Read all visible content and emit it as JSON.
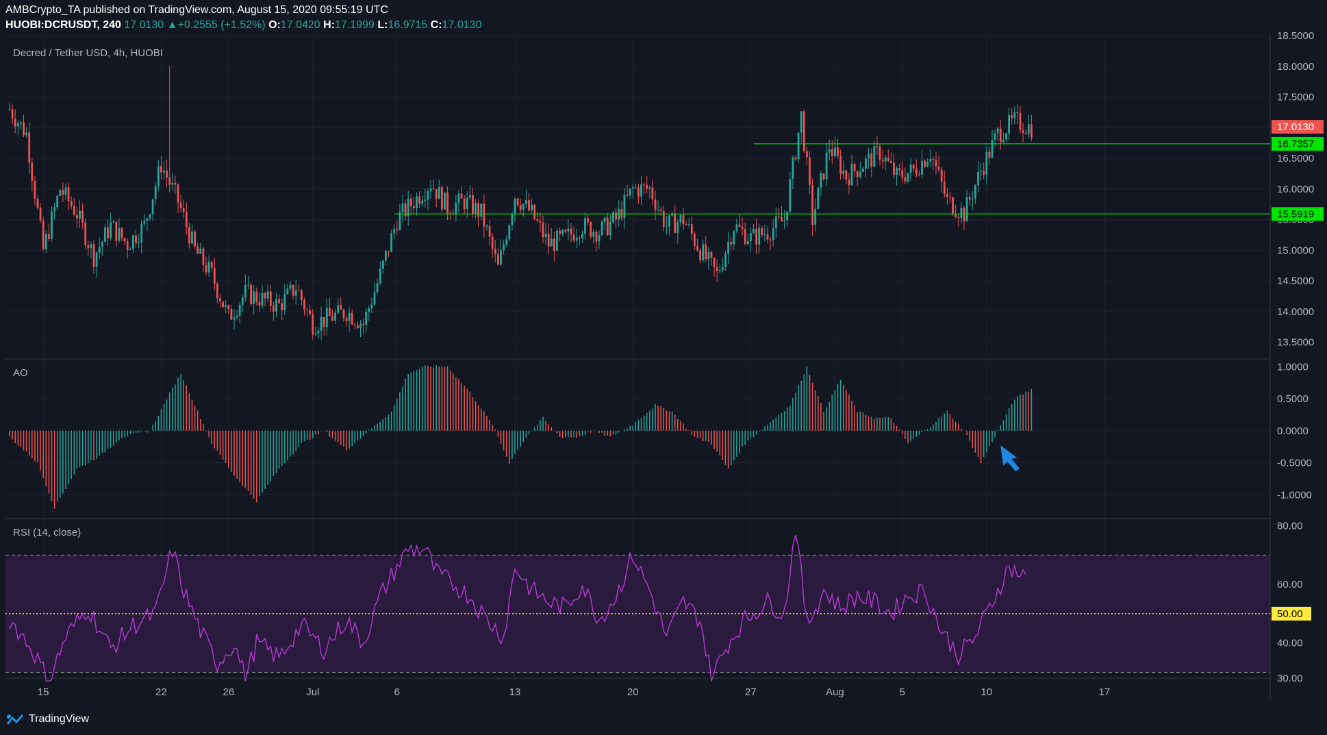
{
  "header": {
    "publisher": "AMBCrypto_TA",
    "published_text": "published on TradingView.com, August 15, 2020 09:55:19 UTC",
    "symbol": "HUOBI:DCRUSDT, 240",
    "last": "17.0130",
    "change": "+0.2555 (+1.52%)",
    "o_label": "O:",
    "o": "17.0420",
    "h_label": "H:",
    "h": "17.1999",
    "l_label": "L:",
    "l": "16.9715",
    "c_label": "C:",
    "c": "17.0130"
  },
  "footer": {
    "brand": "TradingView",
    "logo_icon": "tradingview-logo-icon"
  },
  "colors": {
    "bg": "#131722",
    "up": "#26a69a",
    "down": "#ef5350",
    "grid": "#1e222d",
    "level": "#00e600",
    "rsi": "#b53bd3",
    "arrow": "#1e88e5"
  },
  "chart_data": [
    {
      "type": "candlestick",
      "title": "Decred / Tether USD, 4h, HUOBI",
      "ylim": [
        13.25,
        18.5
      ],
      "yticks": [
        "18.5000",
        "18.0000",
        "17.5000",
        "17.0000",
        "16.5000",
        "16.0000",
        "15.5000",
        "15.0000",
        "14.5000",
        "14.0000",
        "13.5000"
      ],
      "price_range": [
        13.6,
        18.0
      ],
      "waypoints": [
        [
          0,
          17.3
        ],
        [
          6,
          16.9
        ],
        [
          12,
          15.0
        ],
        [
          18,
          16.0
        ],
        [
          24,
          15.6
        ],
        [
          30,
          14.9
        ],
        [
          36,
          15.4
        ],
        [
          42,
          15.1
        ],
        [
          48,
          15.4
        ],
        [
          54,
          16.4
        ],
        [
          60,
          15.8
        ],
        [
          66,
          15.0
        ],
        [
          72,
          14.6
        ],
        [
          78,
          13.9
        ],
        [
          84,
          14.3
        ],
        [
          90,
          14.2
        ],
        [
          96,
          14.1
        ],
        [
          102,
          14.4
        ],
        [
          108,
          13.8
        ],
        [
          114,
          13.9
        ],
        [
          120,
          14.0
        ],
        [
          126,
          13.8
        ],
        [
          132,
          14.6
        ],
        [
          138,
          15.5
        ],
        [
          144,
          15.8
        ],
        [
          150,
          16.1
        ],
        [
          156,
          15.7
        ],
        [
          162,
          15.8
        ],
        [
          168,
          15.6
        ],
        [
          174,
          14.7
        ],
        [
          180,
          15.9
        ],
        [
          186,
          15.6
        ],
        [
          192,
          15.1
        ],
        [
          198,
          15.2
        ],
        [
          204,
          15.4
        ],
        [
          210,
          15.3
        ],
        [
          216,
          15.5
        ],
        [
          222,
          16.0
        ],
        [
          228,
          16.0
        ],
        [
          234,
          15.4
        ],
        [
          240,
          15.5
        ],
        [
          246,
          15.0
        ],
        [
          252,
          14.6
        ],
        [
          258,
          15.4
        ],
        [
          264,
          15.2
        ],
        [
          270,
          15.3
        ],
        [
          276,
          15.5
        ],
        [
          282,
          17.2
        ],
        [
          286,
          15.5
        ],
        [
          292,
          16.7
        ],
        [
          298,
          16.2
        ],
        [
          304,
          16.4
        ],
        [
          310,
          16.6
        ],
        [
          316,
          16.2
        ],
        [
          322,
          16.3
        ],
        [
          328,
          16.6
        ],
        [
          334,
          15.8
        ],
        [
          340,
          15.6
        ],
        [
          346,
          16.3
        ],
        [
          352,
          16.9
        ],
        [
          358,
          17.1
        ],
        [
          364,
          17.0
        ]
      ],
      "candle_count": 365,
      "levels": [
        {
          "value": 16.7357,
          "label": "16.7357",
          "start_index": 265
        },
        {
          "value": 15.5919,
          "label": "15.5919",
          "start_index": 137
        }
      ],
      "last_price": {
        "value": 17.013,
        "label": "17.0130"
      }
    },
    {
      "type": "histogram",
      "title": "AO",
      "ylim": [
        -1.35,
        1.1
      ],
      "yticks": [
        "1.0000",
        "0.5000",
        "0.0000",
        "-0.5000",
        "-1.0000"
      ],
      "waypoints": [
        [
          0,
          -0.1
        ],
        [
          10,
          -0.5
        ],
        [
          16,
          -1.2
        ],
        [
          24,
          -0.6
        ],
        [
          32,
          -0.4
        ],
        [
          40,
          -0.1
        ],
        [
          50,
          0.0
        ],
        [
          56,
          0.5
        ],
        [
          61,
          0.9
        ],
        [
          66,
          0.4
        ],
        [
          72,
          -0.2
        ],
        [
          80,
          -0.7
        ],
        [
          88,
          -1.1
        ],
        [
          96,
          -0.6
        ],
        [
          104,
          -0.2
        ],
        [
          112,
          0.0
        ],
        [
          120,
          -0.3
        ],
        [
          128,
          0.0
        ],
        [
          136,
          0.3
        ],
        [
          142,
          0.9
        ],
        [
          148,
          1.0
        ],
        [
          156,
          1.0
        ],
        [
          164,
          0.6
        ],
        [
          172,
          0.1
        ],
        [
          178,
          -0.5
        ],
        [
          184,
          -0.1
        ],
        [
          190,
          0.2
        ],
        [
          196,
          -0.1
        ],
        [
          202,
          -0.1
        ],
        [
          208,
          0.0
        ],
        [
          214,
          -0.1
        ],
        [
          222,
          0.1
        ],
        [
          230,
          0.4
        ],
        [
          236,
          0.3
        ],
        [
          244,
          -0.1
        ],
        [
          250,
          -0.2
        ],
        [
          256,
          -0.6
        ],
        [
          262,
          -0.2
        ],
        [
          270,
          0.1
        ],
        [
          278,
          0.4
        ],
        [
          284,
          1.0
        ],
        [
          290,
          0.3
        ],
        [
          296,
          0.8
        ],
        [
          302,
          0.3
        ],
        [
          308,
          0.2
        ],
        [
          314,
          0.2
        ],
        [
          320,
          -0.2
        ],
        [
          326,
          0.0
        ],
        [
          334,
          0.3
        ],
        [
          340,
          0.0
        ],
        [
          346,
          -0.5
        ],
        [
          352,
          0.0
        ],
        [
          358,
          0.5
        ],
        [
          364,
          0.65
        ]
      ],
      "arrow_icon": "blue-arrow-annotation"
    },
    {
      "type": "line",
      "title": "RSI (14, close)",
      "ylim": [
        28,
        82
      ],
      "yticks": [
        "80.00",
        "60.00",
        "40.00"
      ],
      "band": [
        30,
        70
      ],
      "midline": {
        "value": 50,
        "label": "50.00"
      },
      "waypoints": [
        [
          0,
          48
        ],
        [
          8,
          38
        ],
        [
          14,
          27
        ],
        [
          20,
          42
        ],
        [
          28,
          52
        ],
        [
          36,
          38
        ],
        [
          44,
          46
        ],
        [
          52,
          50
        ],
        [
          58,
          72
        ],
        [
          62,
          58
        ],
        [
          68,
          44
        ],
        [
          74,
          33
        ],
        [
          80,
          40
        ],
        [
          84,
          28
        ],
        [
          88,
          40
        ],
        [
          96,
          35
        ],
        [
          104,
          46
        ],
        [
          112,
          38
        ],
        [
          120,
          48
        ],
        [
          126,
          40
        ],
        [
          132,
          56
        ],
        [
          138,
          66
        ],
        [
          142,
          72
        ],
        [
          148,
          72
        ],
        [
          152,
          64
        ],
        [
          158,
          60
        ],
        [
          164,
          56
        ],
        [
          170,
          48
        ],
        [
          176,
          42
        ],
        [
          180,
          66
        ],
        [
          186,
          58
        ],
        [
          192,
          54
        ],
        [
          198,
          52
        ],
        [
          204,
          60
        ],
        [
          210,
          48
        ],
        [
          216,
          56
        ],
        [
          222,
          70
        ],
        [
          228,
          58
        ],
        [
          234,
          42
        ],
        [
          240,
          54
        ],
        [
          246,
          48
        ],
        [
          250,
          28
        ],
        [
          256,
          40
        ],
        [
          262,
          48
        ],
        [
          270,
          54
        ],
        [
          276,
          50
        ],
        [
          280,
          80
        ],
        [
          284,
          46
        ],
        [
          290,
          58
        ],
        [
          296,
          52
        ],
        [
          302,
          56
        ],
        [
          308,
          54
        ],
        [
          314,
          50
        ],
        [
          320,
          56
        ],
        [
          326,
          58
        ],
        [
          332,
          44
        ],
        [
          338,
          36
        ],
        [
          344,
          42
        ],
        [
          350,
          54
        ],
        [
          356,
          66
        ],
        [
          362,
          62
        ]
      ]
    }
  ],
  "x_axis": {
    "ticks": [
      {
        "label": "15",
        "index": 12
      },
      {
        "label": "22",
        "index": 54
      },
      {
        "label": "26",
        "index": 78
      },
      {
        "label": "Jul",
        "index": 108
      },
      {
        "label": "6",
        "index": 138
      },
      {
        "label": "13",
        "index": 180
      },
      {
        "label": "20",
        "index": 222
      },
      {
        "label": "27",
        "index": 264
      },
      {
        "label": "Aug",
        "index": 294
      },
      {
        "label": "5",
        "index": 318
      },
      {
        "label": "10",
        "index": 348
      },
      {
        "label": "17",
        "index": 390
      }
    ]
  }
}
